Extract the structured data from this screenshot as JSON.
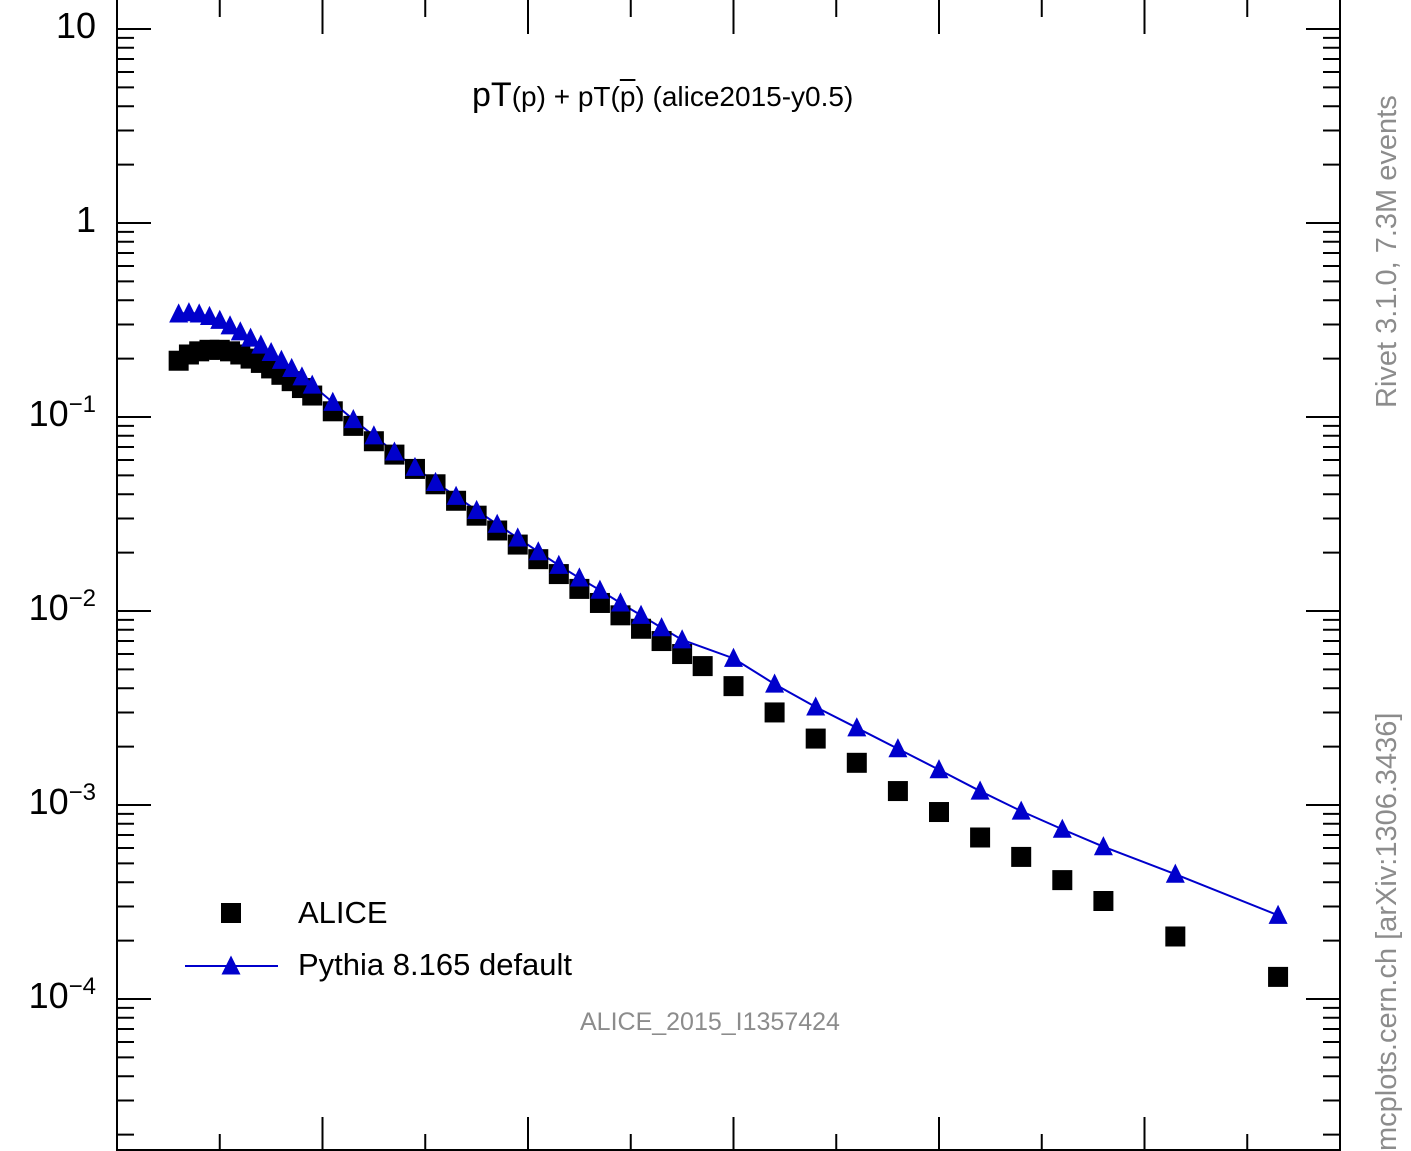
{
  "chart_data": {
    "type": "scatter",
    "title_parts": {
      "a": "pT",
      "b": "(p)",
      "c": " + pT(",
      "d": "p",
      "e": ") (alice2015-y0.5)"
    },
    "watermark": "ALICE_2015_I1357424",
    "side_label_top": "Rivet 3.1.0,  7.3M events",
    "side_label_bottom": "mcplots.cern.ch [arXiv:1306.3436]",
    "xlim": [
      0,
      6
    ],
    "ylim": [
      2e-05,
      12
    ],
    "y_scale": "log",
    "y_tick_labels": [
      {
        "value": 10,
        "base": "10",
        "exp": ""
      },
      {
        "value": 1,
        "base": "1",
        "exp": ""
      },
      {
        "value": 0.1,
        "base": "10",
        "exp": "−1"
      },
      {
        "value": 0.01,
        "base": "10",
        "exp": "−2"
      },
      {
        "value": 0.001,
        "base": "10",
        "exp": "−3"
      },
      {
        "value": 0.0001,
        "base": "10",
        "exp": "−4"
      }
    ],
    "legend": {
      "placement": "bottom-left",
      "entries": [
        "ALICE",
        "Pythia 8.165 default"
      ]
    },
    "series": [
      {
        "name": "ALICE",
        "marker": "square",
        "color": "#000000",
        "points": [
          [
            0.3,
            0.195
          ],
          [
            0.35,
            0.21
          ],
          [
            0.4,
            0.218
          ],
          [
            0.45,
            0.222
          ],
          [
            0.5,
            0.222
          ],
          [
            0.55,
            0.218
          ],
          [
            0.6,
            0.21
          ],
          [
            0.65,
            0.2
          ],
          [
            0.7,
            0.19
          ],
          [
            0.75,
            0.178
          ],
          [
            0.8,
            0.165
          ],
          [
            0.85,
            0.153
          ],
          [
            0.9,
            0.141
          ],
          [
            0.95,
            0.129
          ],
          [
            1.05,
            0.107
          ],
          [
            1.15,
            0.09
          ],
          [
            1.25,
            0.075
          ],
          [
            1.35,
            0.064
          ],
          [
            1.45,
            0.054
          ],
          [
            1.55,
            0.045
          ],
          [
            1.65,
            0.037
          ],
          [
            1.75,
            0.031
          ],
          [
            1.85,
            0.026
          ],
          [
            1.95,
            0.022
          ],
          [
            2.05,
            0.0185
          ],
          [
            2.15,
            0.0155
          ],
          [
            2.25,
            0.013
          ],
          [
            2.35,
            0.011
          ],
          [
            2.45,
            0.0095
          ],
          [
            2.55,
            0.0081
          ],
          [
            2.65,
            0.007
          ],
          [
            2.75,
            0.006
          ],
          [
            2.85,
            0.0052
          ],
          [
            3.0,
            0.0041
          ],
          [
            3.2,
            0.003
          ],
          [
            3.4,
            0.0022
          ],
          [
            3.6,
            0.00165
          ],
          [
            3.8,
            0.00118
          ],
          [
            4.0,
            0.00092
          ],
          [
            4.2,
            0.00068
          ],
          [
            4.4,
            0.00054
          ],
          [
            4.6,
            0.00041
          ],
          [
            4.8,
            0.00032
          ],
          [
            5.15,
            0.00021
          ],
          [
            5.65,
            0.00013
          ]
        ]
      },
      {
        "name": "Pythia 8.165 default",
        "marker": "triangle",
        "color": "#0000cc",
        "points": [
          [
            0.3,
            0.34
          ],
          [
            0.35,
            0.345
          ],
          [
            0.4,
            0.34
          ],
          [
            0.45,
            0.33
          ],
          [
            0.5,
            0.315
          ],
          [
            0.55,
            0.295
          ],
          [
            0.6,
            0.275
          ],
          [
            0.65,
            0.255
          ],
          [
            0.7,
            0.235
          ],
          [
            0.75,
            0.215
          ],
          [
            0.8,
            0.196
          ],
          [
            0.85,
            0.178
          ],
          [
            0.9,
            0.161
          ],
          [
            0.95,
            0.146
          ],
          [
            1.05,
            0.119
          ],
          [
            1.15,
            0.097
          ],
          [
            1.25,
            0.08
          ],
          [
            1.35,
            0.066
          ],
          [
            1.45,
            0.055
          ],
          [
            1.55,
            0.046
          ],
          [
            1.65,
            0.039
          ],
          [
            1.75,
            0.033
          ],
          [
            1.85,
            0.028
          ],
          [
            1.95,
            0.0238
          ],
          [
            2.05,
            0.0202
          ],
          [
            2.15,
            0.0172
          ],
          [
            2.25,
            0.0148
          ],
          [
            2.35,
            0.0128
          ],
          [
            2.45,
            0.011
          ],
          [
            2.55,
            0.0095
          ],
          [
            2.65,
            0.0082
          ],
          [
            2.75,
            0.0071
          ],
          [
            3.0,
            0.0057
          ],
          [
            3.2,
            0.0042
          ],
          [
            3.4,
            0.0032
          ],
          [
            3.6,
            0.0025
          ],
          [
            3.8,
            0.00195
          ],
          [
            4.0,
            0.00152
          ],
          [
            4.2,
            0.00118
          ],
          [
            4.4,
            0.00093
          ],
          [
            4.6,
            0.00075
          ],
          [
            4.8,
            0.00061
          ],
          [
            5.15,
            0.00044
          ],
          [
            5.65,
            0.00027
          ]
        ]
      }
    ]
  }
}
